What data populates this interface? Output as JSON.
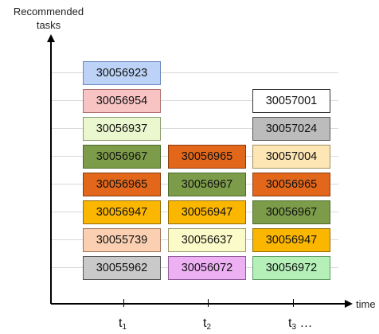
{
  "axis": {
    "y_label": "Recommended tasks",
    "x_label": "time"
  },
  "time_labels": [
    {
      "base": "t",
      "sub": "1",
      "suffix": ""
    },
    {
      "base": "t",
      "sub": "2",
      "suffix": ""
    },
    {
      "base": "t",
      "sub": "3",
      "suffix": " …"
    }
  ],
  "columns": [
    {
      "time": "t1",
      "tasks": [
        {
          "id": "30056923",
          "color": "#bcd3f7",
          "border": "#6a86bd"
        },
        {
          "id": "30056954",
          "color": "#f7c3c3",
          "border": "#b07070"
        },
        {
          "id": "30056937",
          "color": "#ebf7cf",
          "border": "#8c9b6e"
        },
        {
          "id": "30056967",
          "color": "#7c9c49",
          "border": "#4c6a2a"
        },
        {
          "id": "30056965",
          "color": "#e2671b",
          "border": "#8a3b0c"
        },
        {
          "id": "30056947",
          "color": "#fbb600",
          "border": "#946b00"
        },
        {
          "id": "30055739",
          "color": "#fbd0b2",
          "border": "#a07356"
        },
        {
          "id": "30055962",
          "color": "#c9c9c9",
          "border": "#555555"
        }
      ]
    },
    {
      "time": "t2",
      "tasks": [
        {
          "id": "30056965",
          "color": "#e2671b",
          "border": "#8a3b0c"
        },
        {
          "id": "30056967",
          "color": "#7c9c49",
          "border": "#4c6a2a"
        },
        {
          "id": "30056947",
          "color": "#fbb600",
          "border": "#946b00"
        },
        {
          "id": "30056637",
          "color": "#fbfac9",
          "border": "#9a9868"
        },
        {
          "id": "30056072",
          "color": "#ecb0f3",
          "border": "#8e5b97"
        }
      ]
    },
    {
      "time": "t3",
      "tasks": [
        {
          "id": "30057001",
          "color": "#ffffff",
          "border": "#333333"
        },
        {
          "id": "30057024",
          "color": "#bcbcbc",
          "border": "#555555"
        },
        {
          "id": "30057004",
          "color": "#fde6b4",
          "border": "#a38d5c"
        },
        {
          "id": "30056965",
          "color": "#e2671b",
          "border": "#8a3b0c"
        },
        {
          "id": "30056967",
          "color": "#7c9c49",
          "border": "#4c6a2a"
        },
        {
          "id": "30056947",
          "color": "#fbb600",
          "border": "#946b00"
        },
        {
          "id": "30056972",
          "color": "#b4f0b8",
          "border": "#5f9d63"
        }
      ]
    }
  ]
}
